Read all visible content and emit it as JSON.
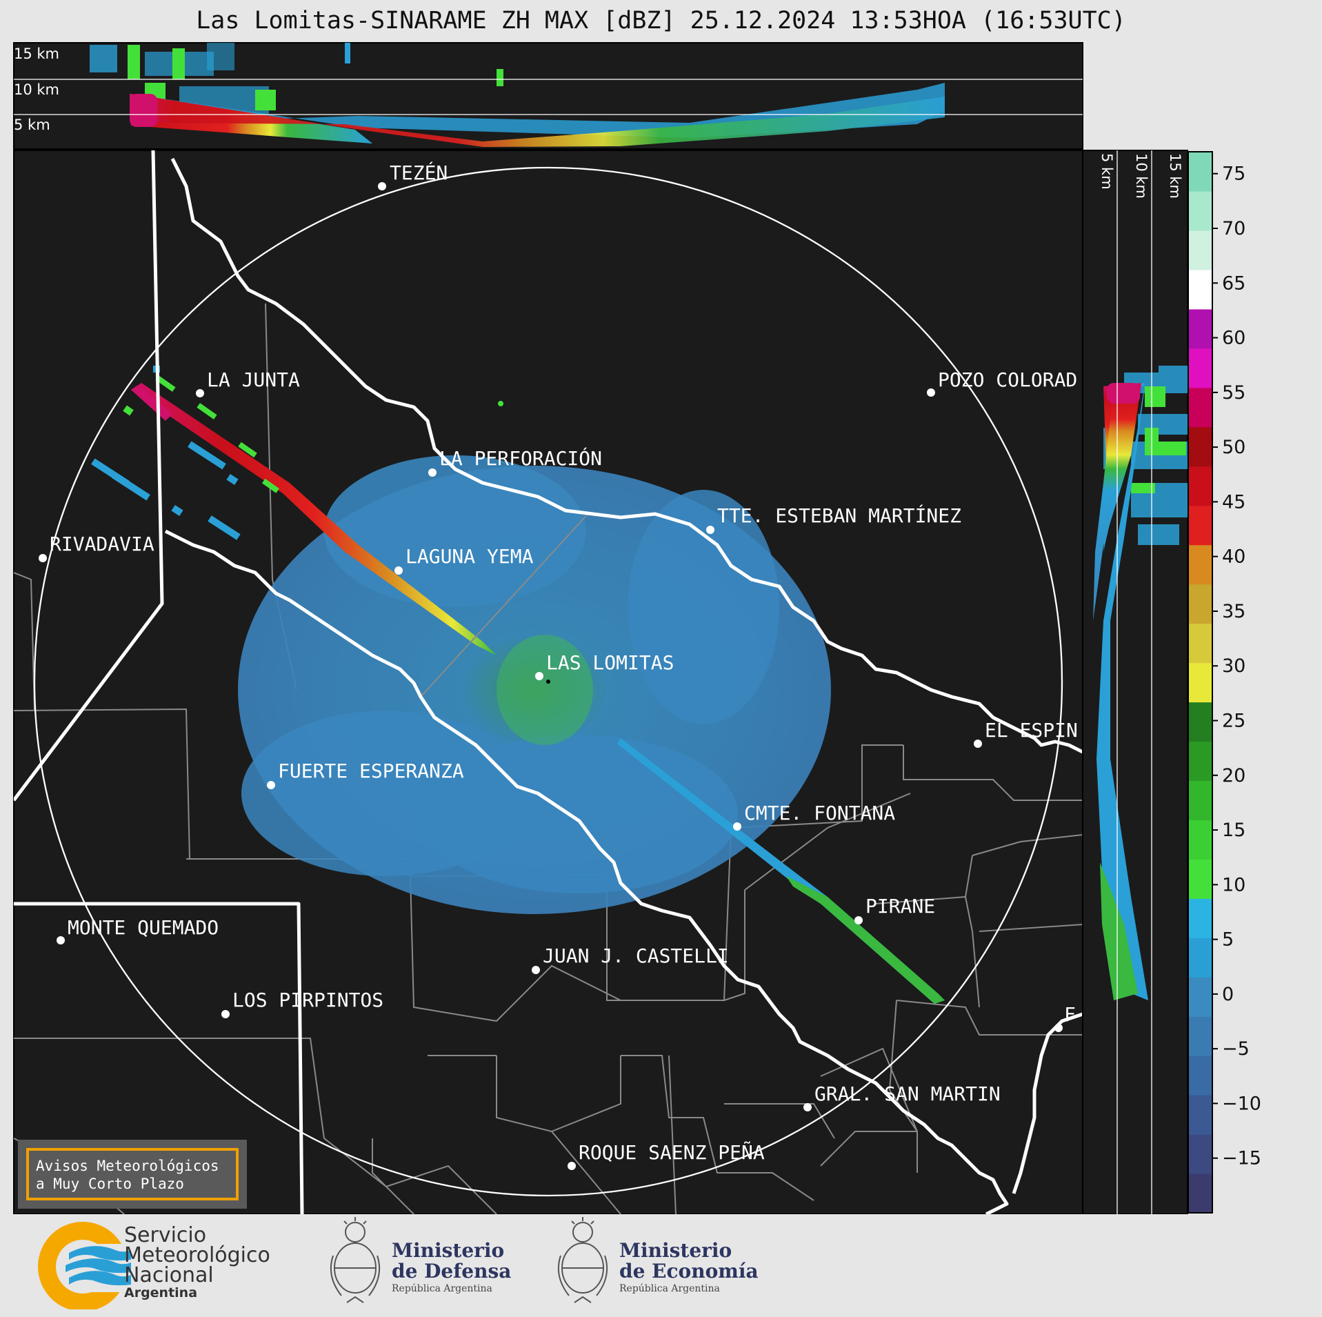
{
  "title": "Las Lomitas-SINARAME ZH MAX [dBZ] 25.12.2024 13:53HOA (16:53UTC)",
  "top_profile": {
    "height_labels": [
      "15 km",
      "10 km",
      "5 km"
    ]
  },
  "side_profile": {
    "height_labels": [
      "5 km",
      "10 km",
      "15 km"
    ]
  },
  "colorbar": {
    "unit": "dBZ",
    "range": [
      -20,
      77
    ],
    "ticks": [
      "75",
      "70",
      "65",
      "60",
      "55",
      "50",
      "45",
      "40",
      "35",
      "30",
      "25",
      "20",
      "15",
      "10",
      "5",
      "0",
      "−5",
      "−10",
      "−15"
    ],
    "colors": [
      "#3b3b6e",
      "#3d4a82",
      "#3b5a94",
      "#396ba4",
      "#3a7cb2",
      "#3a8cc0",
      "#2a9fd6",
      "#2bb3e3",
      "#44e03a",
      "#3ccf33",
      "#32b62b",
      "#2a9a25",
      "#237f20",
      "#e8e83a",
      "#d6c93a",
      "#c9a62e",
      "#d88a20",
      "#e0201e",
      "#c80f1a",
      "#a30c10",
      "#c8005a",
      "#e010c0",
      "#b010b0",
      "#ffffff",
      "#d0f0e0",
      "#a8e8cc",
      "#7fd9b8"
    ]
  },
  "cities": [
    {
      "name": "TEZÉN"
    },
    {
      "name": "LA JUNTA"
    },
    {
      "name": "POZO COLORAD"
    },
    {
      "name": "LA PERFORACIÓN"
    },
    {
      "name": "TTE. ESTEBAN MARTÍNEZ"
    },
    {
      "name": "RIVADAVIA"
    },
    {
      "name": "LAGUNA YEMA"
    },
    {
      "name": "LAS LOMITAS"
    },
    {
      "name": "EL ESPIN"
    },
    {
      "name": "FUERTE ESPERANZA"
    },
    {
      "name": "CMTE. FONTANA"
    },
    {
      "name": "PIRANE"
    },
    {
      "name": "MONTE QUEMADO"
    },
    {
      "name": "JUAN J. CASTELLI"
    },
    {
      "name": "LOS PIRPINTOS"
    },
    {
      "name": "F"
    },
    {
      "name": "GRAL. SAN MARTIN"
    },
    {
      "name": "ROQUE SAENZ PEÑA"
    }
  ],
  "alert_box": {
    "line1": "Avisos Meteorológicos",
    "line2": "a Muy Corto Plazo"
  },
  "footer": {
    "smn": {
      "line1": "Servicio",
      "line2": "Meteorológico",
      "line3": "Nacional",
      "line4": "Argentina"
    },
    "defensa": {
      "line1": "Ministerio",
      "line2": "de Defensa",
      "line3": "República Argentina"
    },
    "economia": {
      "line1": "Ministerio",
      "line2": "de Economía",
      "line3": "República Argentina"
    }
  }
}
